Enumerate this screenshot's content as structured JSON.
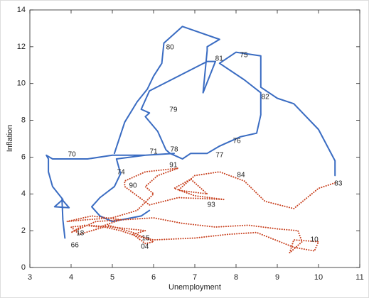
{
  "chart_data": {
    "type": "line",
    "x_label": "Unemployment",
    "y_label": "Inflation",
    "xlim": [
      3,
      11
    ],
    "xticks": [
      3,
      4,
      5,
      6,
      7,
      8,
      9,
      10,
      11
    ],
    "ylim": [
      0,
      14
    ],
    "yticks": [
      0,
      2,
      4,
      6,
      8,
      10,
      12,
      14
    ],
    "grid": false,
    "series": [
      {
        "color": "#3a6cc2",
        "dash": "solid",
        "x": [
          3.85,
          3.8,
          3.78,
          3.95,
          3.6,
          3.8,
          3.55,
          3.45,
          3.45,
          3.4,
          3.55,
          4.4,
          5.0,
          5.8,
          5.1,
          5.2,
          5.05,
          4.7,
          4.5,
          4.7,
          5.0,
          5.7,
          5.9,
          null,
          5.05,
          5.3,
          5.6,
          5.85,
          6.0,
          6.2,
          6.25,
          6.7,
          7.6,
          7.3,
          7.3,
          7.2,
          7.5,
          7.3,
          5.9,
          5.7,
          5.9,
          5.8,
          6.1,
          6.3,
          6.4,
          6.7,
          6.9,
          7.3,
          7.6,
          7.7,
          8.1,
          8.5,
          8.6,
          8.6,
          8.2,
          7.6,
          8.0,
          8.6,
          8.6,
          9.0,
          9.4,
          10.0,
          10.4,
          10.4,
          null,
          5.8,
          6.5
        ],
        "values": [
          1.6,
          2.6,
          3.7,
          3.25,
          3.3,
          3.7,
          4.4,
          5.2,
          5.9,
          6.1,
          5.9,
          5.9,
          6.1,
          6.1,
          5.9,
          5.1,
          4.4,
          3.8,
          3.3,
          2.8,
          2.5,
          2.8,
          3.1,
          null,
          6.2,
          7.9,
          9.0,
          9.7,
          10.4,
          11.1,
          12.2,
          13.1,
          12.4,
          12.0,
          11.8,
          9.5,
          11.2,
          11.2,
          9.6,
          8.6,
          8.4,
          8.2,
          7.4,
          6.4,
          6.2,
          5.9,
          6.2,
          6.2,
          6.6,
          6.7,
          7.1,
          7.3,
          8.3,
          9.5,
          10.2,
          11.1,
          11.7,
          11.5,
          9.8,
          9.2,
          8.9,
          7.5,
          5.8,
          5.0,
          null,
          6.1,
          6.2
        ]
      },
      {
        "color": "#c8401e",
        "dash": "dotted",
        "x": [
          10.4,
          10.0,
          9.4,
          8.7,
          8.2,
          7.6,
          7.0,
          6.6,
          7.3,
          6.9,
          6.5,
          7.0,
          7.7,
          6.6,
          5.9,
          5.3,
          5.3,
          5.8,
          6.6,
          6.1,
          5.8,
          6.0,
          5.6,
          5.0,
          4.4,
          3.9,
          4.5,
          5.2,
          4.7,
          4.3,
          4.0,
          4.6,
          5.3,
          6.0,
          6.7,
          7.5,
          8.3,
          9.0,
          9.5,
          9.6,
          9.3,
          9.4,
          10.0,
          9.9,
          9.4,
          8.5,
          7.8,
          7.0,
          6.0,
          5.6,
          5.2,
          4.8,
          4.5,
          4.2,
          4.0,
          4.4,
          5.0,
          5.8,
          5.5,
          5.8,
          6.0,
          5.5,
          4.9
        ],
        "values": [
          4.6,
          4.3,
          3.2,
          3.6,
          4.7,
          5.2,
          5.0,
          4.2,
          4.0,
          4.8,
          4.3,
          3.9,
          3.7,
          3.8,
          3.4,
          4.4,
          4.7,
          5.2,
          5.4,
          5.0,
          4.4,
          4.0,
          3.1,
          2.7,
          2.6,
          2.5,
          2.8,
          2.6,
          2.2,
          2.3,
          1.9,
          2.5,
          2.6,
          2.7,
          2.4,
          2.2,
          2.3,
          2.1,
          2.0,
          1.4,
          0.8,
          1.5,
          1.4,
          0.9,
          1.1,
          1.9,
          1.8,
          1.6,
          1.5,
          1.7,
          2.0,
          2.2,
          2.0,
          1.8,
          2.2,
          2.3,
          2.2,
          2.0,
          1.8,
          1.3,
          1.4,
          1.9,
          2.3
        ]
      }
    ],
    "annotations": [
      {
        "text": "66",
        "x": 4.09,
        "y": 1.2
      },
      {
        "text": "70",
        "x": 4.02,
        "y": 6.14
      },
      {
        "text": "71",
        "x": 6.0,
        "y": 6.3
      },
      {
        "text": "74",
        "x": 5.21,
        "y": 5.17
      },
      {
        "text": "75",
        "x": 8.19,
        "y": 11.54
      },
      {
        "text": "76",
        "x": 8.02,
        "y": 6.87
      },
      {
        "text": "77",
        "x": 7.6,
        "y": 6.1
      },
      {
        "text": "78",
        "x": 6.5,
        "y": 6.4
      },
      {
        "text": "79",
        "x": 6.48,
        "y": 8.57
      },
      {
        "text": "80",
        "x": 6.4,
        "y": 11.97
      },
      {
        "text": "81",
        "x": 7.59,
        "y": 11.35
      },
      {
        "text": "82",
        "x": 8.71,
        "y": 9.27
      },
      {
        "text": "83",
        "x": 10.48,
        "y": 4.56
      },
      {
        "text": "84",
        "x": 8.12,
        "y": 5.02
      },
      {
        "text": "90",
        "x": 5.5,
        "y": 4.44
      },
      {
        "text": "91",
        "x": 6.48,
        "y": 5.56
      },
      {
        "text": "93",
        "x": 7.4,
        "y": 3.4
      },
      {
        "text": "04",
        "x": 5.79,
        "y": 1.12
      },
      {
        "text": "10",
        "x": 9.9,
        "y": 1.5
      },
      {
        "text": "15",
        "x": 5.81,
        "y": 1.58
      },
      {
        "text": "18",
        "x": 4.22,
        "y": 1.85
      }
    ]
  }
}
